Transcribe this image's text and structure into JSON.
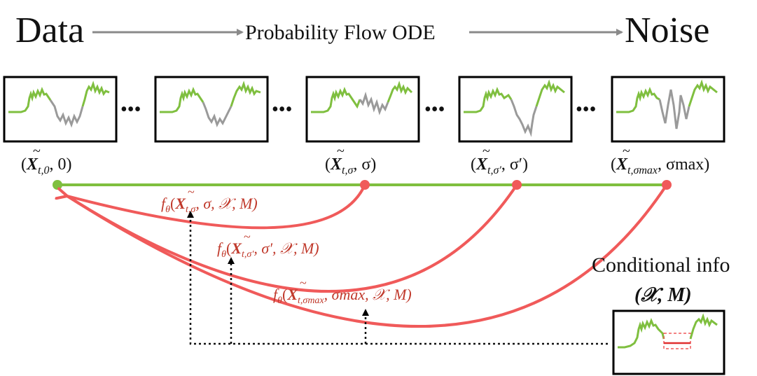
{
  "header": {
    "left": "Data",
    "middle": "Probability Flow ODE",
    "right": "Noise"
  },
  "ellipses": [
    "•••",
    "•••",
    "•••",
    "•••"
  ],
  "panel_labels": [
    {
      "sym": "X",
      "sub": "t,0",
      "tail": ", 0)"
    },
    {
      "sym": "X",
      "sub": "t,σ",
      "tail": ", σ)"
    },
    {
      "sym": "X",
      "sub": "t,σ′",
      "tail": ", σ′)"
    },
    {
      "sym": "X",
      "sub": "t,σmax",
      "tail": ", σmax)"
    }
  ],
  "functions": [
    {
      "prefix": "f",
      "theta": "θ",
      "sub": "t,σ",
      "args": ", σ, 𝒳, M)"
    },
    {
      "prefix": "f",
      "theta": "θ",
      "sub": "t,σ′",
      "args": ", σ′, 𝒳, M)"
    },
    {
      "prefix": "f",
      "theta": "θ",
      "sub": "t,σmax",
      "args": ", σmax, 𝒳, M)"
    }
  ],
  "conditional": {
    "title": "Conditional info",
    "vars": "(𝒳, M)"
  },
  "colors": {
    "green": "#7fbf3f",
    "gray": "#8c8c8c",
    "red": "#f05a5a",
    "red_text": "#c0392b",
    "arrow_gray": "#8a8a8a"
  }
}
